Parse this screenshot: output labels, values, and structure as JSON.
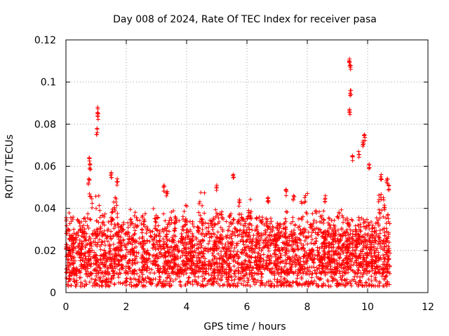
{
  "chart_data": {
    "type": "scatter",
    "title": "Day 008 of 2024, Rate Of TEC Index for receiver pasa",
    "xlabel": "GPS time / hours",
    "ylabel": "ROTI / TECUs",
    "xlim": [
      0,
      12
    ],
    "ylim": [
      0,
      0.12
    ],
    "x_ticks": [
      0,
      2,
      4,
      6,
      8,
      10,
      12
    ],
    "x_tick_labels": [
      "0",
      "2",
      "4",
      "6",
      "8",
      "10",
      "12"
    ],
    "y_ticks": [
      0,
      0.02,
      0.04,
      0.06,
      0.08,
      0.1,
      0.12
    ],
    "y_tick_labels": [
      "0",
      "0.02",
      "0.04",
      "0.06",
      "0.08",
      "0.1",
      "0.12"
    ],
    "grid": true,
    "marker": "+",
    "series": [
      {
        "name": "ROTI",
        "color": "#ff0000",
        "data_extent_hours": [
          0,
          10.75
        ],
        "baseline_range": [
          0.003,
          0.03
        ],
        "notable_points": [
          {
            "x": 1.05,
            "y": 0.088
          },
          {
            "x": 1.07,
            "y": 0.085
          },
          {
            "x": 1.03,
            "y": 0.078
          },
          {
            "x": 0.78,
            "y": 0.064
          },
          {
            "x": 0.8,
            "y": 0.061
          },
          {
            "x": 0.76,
            "y": 0.054
          },
          {
            "x": 1.5,
            "y": 0.057
          },
          {
            "x": 1.7,
            "y": 0.054
          },
          {
            "x": 3.25,
            "y": 0.051
          },
          {
            "x": 3.35,
            "y": 0.048
          },
          {
            "x": 5.0,
            "y": 0.051
          },
          {
            "x": 5.55,
            "y": 0.056
          },
          {
            "x": 5.75,
            "y": 0.044
          },
          {
            "x": 6.7,
            "y": 0.045
          },
          {
            "x": 7.3,
            "y": 0.049
          },
          {
            "x": 7.55,
            "y": 0.046
          },
          {
            "x": 8.6,
            "y": 0.046
          },
          {
            "x": 9.4,
            "y": 0.111
          },
          {
            "x": 9.42,
            "y": 0.108
          },
          {
            "x": 9.43,
            "y": 0.096
          },
          {
            "x": 9.4,
            "y": 0.087
          },
          {
            "x": 9.9,
            "y": 0.075
          },
          {
            "x": 9.85,
            "y": 0.072
          },
          {
            "x": 9.7,
            "y": 0.067
          },
          {
            "x": 9.5,
            "y": 0.065
          },
          {
            "x": 10.05,
            "y": 0.061
          },
          {
            "x": 10.45,
            "y": 0.056
          },
          {
            "x": 10.65,
            "y": 0.054
          },
          {
            "x": 10.7,
            "y": 0.051
          }
        ]
      }
    ]
  }
}
